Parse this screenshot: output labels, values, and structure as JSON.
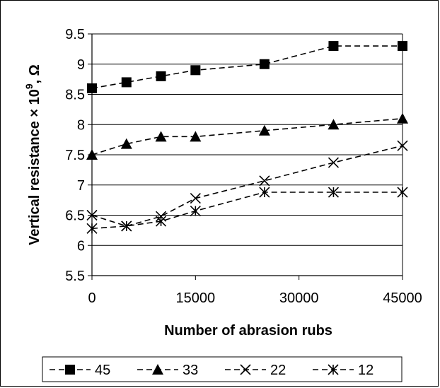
{
  "chart_data": {
    "type": "line",
    "xlabel": "Number of abrasion rubs",
    "ylabel": "Vertical resistance × 10⁹, Ω",
    "x_ticks": [
      "0",
      "15000",
      "30000",
      "45000"
    ],
    "y_ticks": [
      "5.5",
      "6",
      "6.5",
      "7",
      "7.5",
      "8",
      "8.5",
      "9",
      "9.5"
    ],
    "xlim": [
      0,
      45000
    ],
    "ylim": [
      5.5,
      9.5
    ],
    "grid": "horizontal",
    "legend_position": "bottom",
    "x": [
      0,
      5000,
      10000,
      15000,
      25000,
      35000,
      45000
    ],
    "series": [
      {
        "name": "45",
        "marker": "square",
        "values": [
          8.6,
          8.7,
          8.8,
          8.9,
          9.0,
          9.3,
          9.3
        ]
      },
      {
        "name": "33",
        "marker": "triangle",
        "values": [
          7.5,
          7.68,
          7.8,
          7.8,
          7.9,
          8.0,
          8.1
        ]
      },
      {
        "name": "22",
        "marker": "x",
        "values": [
          6.5,
          6.32,
          6.48,
          6.78,
          7.07,
          7.37,
          7.65
        ]
      },
      {
        "name": "12",
        "marker": "asterisk",
        "values": [
          6.28,
          6.32,
          6.4,
          6.57,
          6.88,
          6.88,
          6.88
        ]
      }
    ]
  }
}
